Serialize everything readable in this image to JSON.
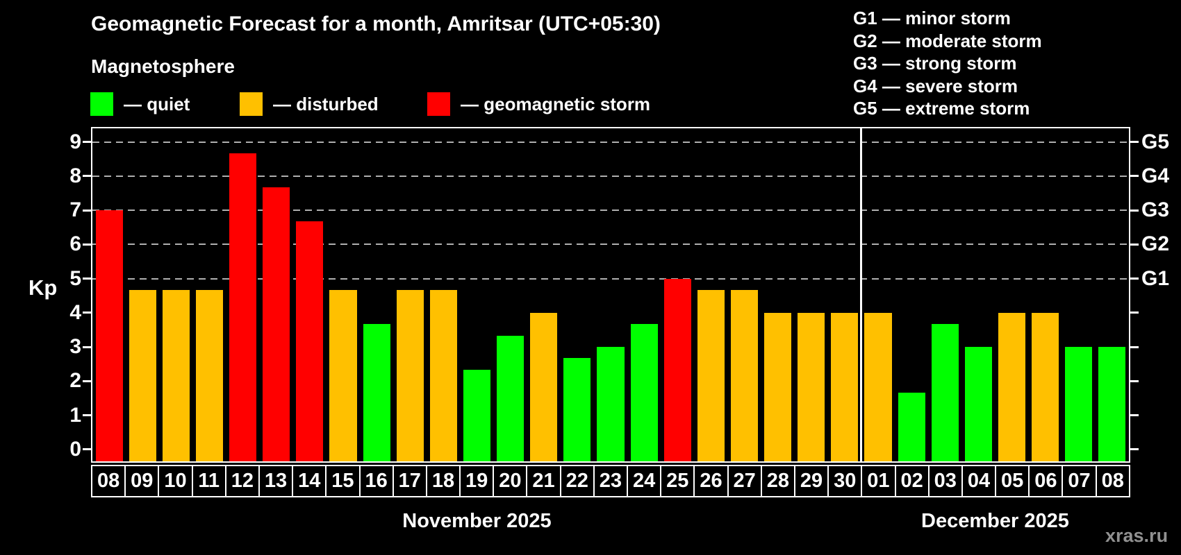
{
  "header": {
    "title": "Geomagnetic Forecast for a month, Amritsar (UTC+05:30)",
    "subtitle": "Magnetosphere"
  },
  "legend": {
    "items": [
      {
        "key": "quiet",
        "label": "— quiet",
        "color": "#00ff00"
      },
      {
        "key": "disturbed",
        "label": "— disturbed",
        "color": "#ffc000"
      },
      {
        "key": "storm",
        "label": "— geomagnetic storm",
        "color": "#ff0000"
      }
    ]
  },
  "storm_scale": {
    "lines": [
      "G1 — minor storm",
      "G2 — moderate storm",
      "G3 — strong storm",
      "G4 — severe storm",
      "G5 — extreme storm"
    ]
  },
  "watermark": "xras.ru",
  "chart_data": {
    "type": "bar",
    "ylabel": "Kp",
    "y_ticks": [
      0,
      1,
      2,
      3,
      4,
      5,
      6,
      7,
      8,
      9
    ],
    "ylim": [
      -0.35,
      9.4
    ],
    "grid": "dashed horizontal lines at storm levels only",
    "grid_kp_levels": [
      5,
      6,
      7,
      8,
      9
    ],
    "right_axis_labels": [
      {
        "kp": 9,
        "label": "G5"
      },
      {
        "kp": 8,
        "label": "G4"
      },
      {
        "kp": 7,
        "label": "G3"
      },
      {
        "kp": 6,
        "label": "G2"
      },
      {
        "kp": 5,
        "label": "G1"
      }
    ],
    "bar_colors_by_level": {
      "quiet": "#00ff00",
      "disturbed": "#ffc000",
      "storm": "#ff0000"
    },
    "months": [
      {
        "label": "November 2025",
        "days": [
          {
            "date": "08",
            "kp": 7.0,
            "level": "storm"
          },
          {
            "date": "09",
            "kp": 4.67,
            "level": "disturbed"
          },
          {
            "date": "10",
            "kp": 4.67,
            "level": "disturbed"
          },
          {
            "date": "11",
            "kp": 4.67,
            "level": "disturbed"
          },
          {
            "date": "12",
            "kp": 8.67,
            "level": "storm"
          },
          {
            "date": "13",
            "kp": 7.67,
            "level": "storm"
          },
          {
            "date": "14",
            "kp": 6.67,
            "level": "storm"
          },
          {
            "date": "15",
            "kp": 4.67,
            "level": "disturbed"
          },
          {
            "date": "16",
            "kp": 3.67,
            "level": "quiet"
          },
          {
            "date": "17",
            "kp": 4.67,
            "level": "disturbed"
          },
          {
            "date": "18",
            "kp": 4.67,
            "level": "disturbed"
          },
          {
            "date": "19",
            "kp": 2.33,
            "level": "quiet"
          },
          {
            "date": "20",
            "kp": 3.33,
            "level": "quiet"
          },
          {
            "date": "21",
            "kp": 4.0,
            "level": "disturbed"
          },
          {
            "date": "22",
            "kp": 2.67,
            "level": "quiet"
          },
          {
            "date": "23",
            "kp": 3.0,
            "level": "quiet"
          },
          {
            "date": "24",
            "kp": 3.67,
            "level": "quiet"
          },
          {
            "date": "25",
            "kp": 5.0,
            "level": "storm"
          },
          {
            "date": "26",
            "kp": 4.67,
            "level": "disturbed"
          },
          {
            "date": "27",
            "kp": 4.67,
            "level": "disturbed"
          },
          {
            "date": "28",
            "kp": 4.0,
            "level": "disturbed"
          },
          {
            "date": "29",
            "kp": 4.0,
            "level": "disturbed"
          },
          {
            "date": "30",
            "kp": 4.0,
            "level": "disturbed"
          }
        ]
      },
      {
        "label": "December 2025",
        "days": [
          {
            "date": "01",
            "kp": 4.0,
            "level": "disturbed"
          },
          {
            "date": "02",
            "kp": 1.67,
            "level": "quiet"
          },
          {
            "date": "03",
            "kp": 3.67,
            "level": "quiet"
          },
          {
            "date": "04",
            "kp": 3.0,
            "level": "quiet"
          },
          {
            "date": "05",
            "kp": 4.0,
            "level": "disturbed"
          },
          {
            "date": "06",
            "kp": 4.0,
            "level": "disturbed"
          },
          {
            "date": "07",
            "kp": 3.0,
            "level": "quiet"
          },
          {
            "date": "08",
            "kp": 3.0,
            "level": "quiet"
          }
        ]
      }
    ]
  }
}
